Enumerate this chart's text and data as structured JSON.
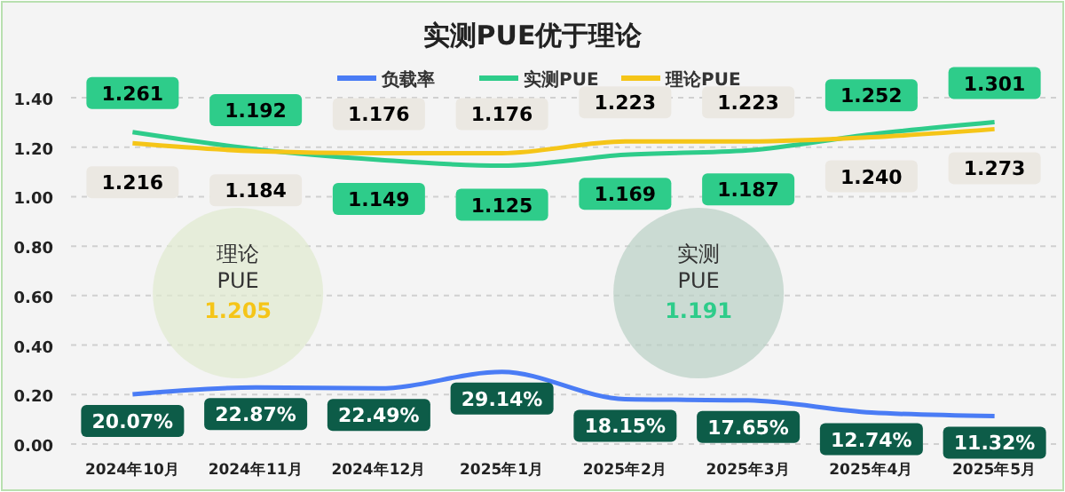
{
  "chart_data": {
    "type": "line",
    "title": "实测PUE优于理论",
    "categories": [
      "2024年10月",
      "2024年11月",
      "2024年12月",
      "2025年1月",
      "2025年2月",
      "2025年3月",
      "2025年4月",
      "2025年5月"
    ],
    "series": [
      {
        "name": "负载率",
        "color": "#4a7cf5",
        "values": [
          0.2007,
          0.2287,
          0.2249,
          0.2914,
          0.1815,
          0.1765,
          0.1274,
          0.1132
        ],
        "value_labels": [
          "20.07%",
          "22.87%",
          "22.49%",
          "29.14%",
          "18.15%",
          "17.65%",
          "12.74%",
          "11.32%"
        ]
      },
      {
        "name": "实测PUE",
        "color": "#2ecc8a",
        "values": [
          1.261,
          1.192,
          1.149,
          1.125,
          1.169,
          1.187,
          1.252,
          1.301
        ],
        "value_labels": [
          "1.261",
          "1.192",
          "1.149",
          "1.125",
          "1.169",
          "1.187",
          "1.252",
          "1.301"
        ]
      },
      {
        "name": "理论PUE",
        "color": "#f5c518",
        "values": [
          1.216,
          1.184,
          1.176,
          1.176,
          1.223,
          1.223,
          1.24,
          1.273
        ],
        "value_labels": [
          "1.216",
          "1.184",
          "1.176",
          "1.176",
          "1.223",
          "1.223",
          "1.240",
          "1.273"
        ]
      }
    ],
    "ylim": [
      0,
      1.4
    ],
    "yticks": [
      {
        "value": 0,
        "label": "0.00"
      },
      {
        "value": 0.2,
        "label": "0.20"
      },
      {
        "value": 0.4,
        "label": "0.40"
      },
      {
        "value": 0.6,
        "label": "0.60"
      },
      {
        "value": 0.8,
        "label": "0.80"
      },
      {
        "value": 1.0,
        "label": "1.00"
      },
      {
        "value": 1.2,
        "label": "1.20"
      },
      {
        "value": 1.4,
        "label": "1.40"
      }
    ],
    "grid": "y",
    "legend": "top",
    "marker": "none",
    "line_style": "solid",
    "annotations": [
      "理论\nPUE",
      "1.205",
      "实测\nPUE",
      "1.191"
    ]
  }
}
